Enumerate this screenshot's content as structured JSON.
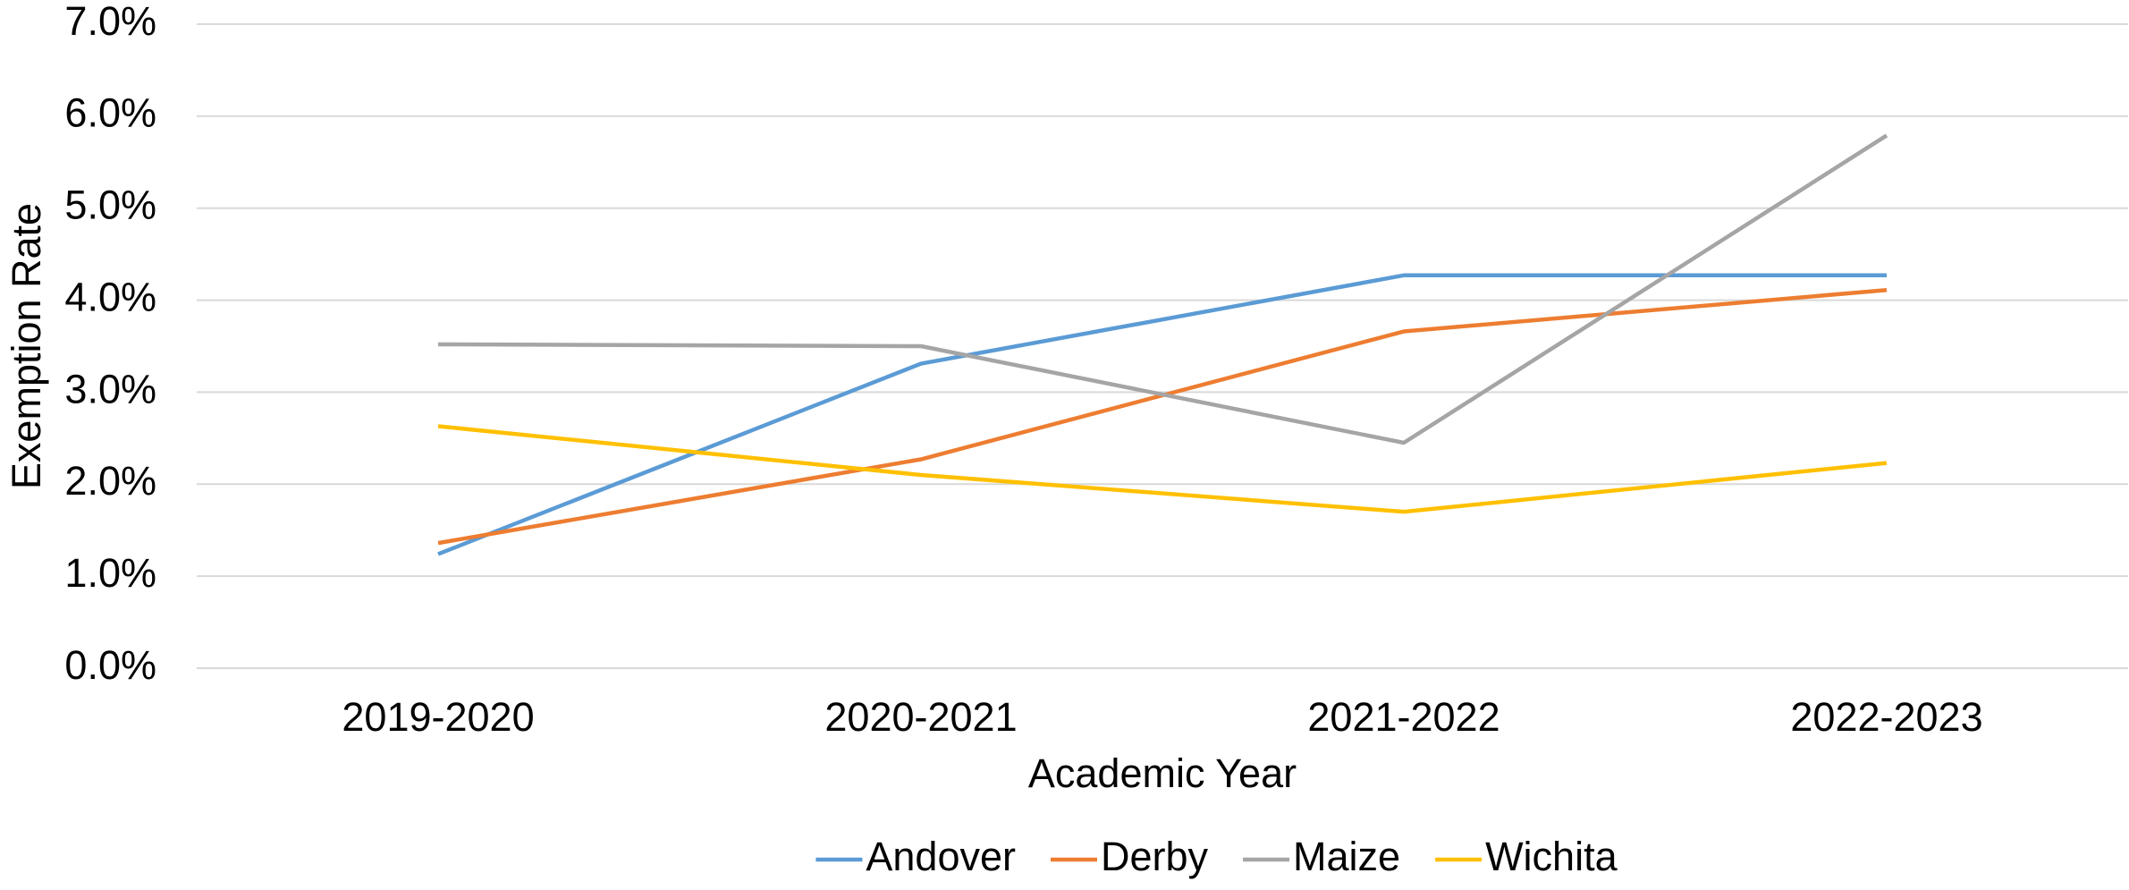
{
  "chart_data": {
    "type": "line",
    "x_label": "Academic Year",
    "y_label": "Exemption Rate",
    "categories": [
      "2019-2020",
      "2020-2021",
      "2021-2022",
      "2022-2023"
    ],
    "series": [
      {
        "name": "Andover",
        "color": "#5b9bd5",
        "values": [
          1.24,
          3.31,
          4.27,
          4.27
        ]
      },
      {
        "name": "Derby",
        "color": "#ed7d31",
        "values": [
          1.36,
          2.27,
          3.66,
          4.11
        ]
      },
      {
        "name": "Maize",
        "color": "#a5a5a5",
        "values": [
          3.52,
          3.5,
          2.45,
          5.79
        ]
      },
      {
        "name": "Wichita",
        "color": "#ffc000",
        "values": [
          2.63,
          2.1,
          1.7,
          2.23
        ]
      }
    ],
    "ylim": [
      0,
      7
    ],
    "yticks": [
      {
        "value": 0,
        "label": "0.0%"
      },
      {
        "value": 1,
        "label": "1.0%"
      },
      {
        "value": 2,
        "label": "2.0%"
      },
      {
        "value": 3,
        "label": "3.0%"
      },
      {
        "value": 4,
        "label": "4.0%"
      },
      {
        "value": 5,
        "label": "5.0%"
      },
      {
        "value": 6,
        "label": "6.0%"
      },
      {
        "value": 7,
        "label": "7.0%"
      }
    ],
    "grid": true,
    "legend": "bottom"
  }
}
